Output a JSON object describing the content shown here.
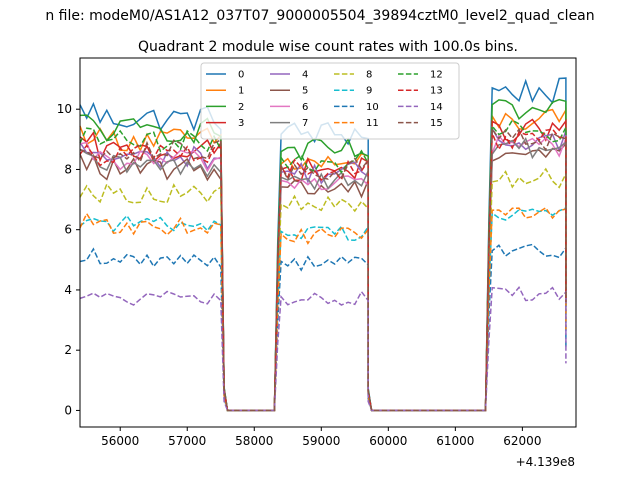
{
  "suptitle": "n file: modeM0/AS1A12_037T07_9000005504_39894cztM0_level2_quad_clean",
  "chart_data": {
    "type": "line",
    "title": "Quadrant 2 module wise count rates with 100.0s bins.",
    "xlabel": "",
    "ylabel": "",
    "x_offset_label": "+4.139e8",
    "xlim": [
      55400,
      62800
    ],
    "ylim": [
      -0.55,
      11.7
    ],
    "xticks": [
      56000,
      57000,
      58000,
      59000,
      60000,
      61000,
      62000
    ],
    "xtick_labels": [
      "56000",
      "57000",
      "58000",
      "59000",
      "60000",
      "61000",
      "62000"
    ],
    "yticks": [
      0,
      2,
      4,
      6,
      8,
      10
    ],
    "ytick_labels": [
      "0",
      "2",
      "4",
      "6",
      "8",
      "10"
    ],
    "grid": false,
    "legend_position": "top-center",
    "segments": [
      {
        "start": 55400,
        "end": 57500
      },
      {
        "start": 58400,
        "end": 59650
      },
      {
        "start": 61550,
        "end": 62650
      }
    ],
    "off_intervals": [
      [
        57600,
        58350
      ],
      [
        59700,
        61500
      ]
    ],
    "series": [
      {
        "name": "0",
        "color": "#1f77b4",
        "style": "solid",
        "levels": [
          9.7,
          9.2,
          10.6
        ]
      },
      {
        "name": "1",
        "color": "#ff7f0e",
        "style": "solid",
        "levels": [
          9.0,
          8.2,
          9.6
        ]
      },
      {
        "name": "2",
        "color": "#2ca02c",
        "style": "solid",
        "levels": [
          9.3,
          8.6,
          9.9
        ]
      },
      {
        "name": "3",
        "color": "#d62728",
        "style": "solid",
        "levels": [
          8.6,
          8.0,
          9.3
        ]
      },
      {
        "name": "4",
        "color": "#9467bd",
        "style": "solid",
        "levels": [
          8.4,
          7.9,
          9.0
        ]
      },
      {
        "name": "5",
        "color": "#8c564b",
        "style": "solid",
        "levels": [
          8.0,
          7.4,
          8.6
        ]
      },
      {
        "name": "6",
        "color": "#e377c2",
        "style": "solid",
        "levels": [
          8.3,
          7.6,
          8.8
        ]
      },
      {
        "name": "7",
        "color": "#7f7f7f",
        "style": "solid",
        "levels": [
          8.1,
          7.7,
          8.7
        ]
      },
      {
        "name": "8",
        "color": "#bcbd22",
        "style": "dashed",
        "levels": [
          7.2,
          6.8,
          7.7
        ]
      },
      {
        "name": "9",
        "color": "#17becf",
        "style": "dashed",
        "levels": [
          6.2,
          5.9,
          6.6
        ]
      },
      {
        "name": "10",
        "color": "#1f77b4",
        "style": "dashed",
        "levels": [
          5.0,
          4.9,
          5.3
        ]
      },
      {
        "name": "11",
        "color": "#ff7f0e",
        "style": "dashed",
        "levels": [
          6.1,
          5.8,
          6.6
        ]
      },
      {
        "name": "12",
        "color": "#2ca02c",
        "style": "dashed",
        "levels": [
          8.9,
          8.3,
          9.3
        ]
      },
      {
        "name": "13",
        "color": "#d62728",
        "style": "dashed",
        "levels": [
          8.5,
          8.0,
          9.0
        ]
      },
      {
        "name": "14",
        "color": "#9467bd",
        "style": "dashed",
        "levels": [
          3.7,
          3.7,
          3.9
        ]
      },
      {
        "name": "15",
        "color": "#8c564b",
        "style": "dashed",
        "levels": [
          8.6,
          8.0,
          9.0
        ]
      }
    ]
  }
}
